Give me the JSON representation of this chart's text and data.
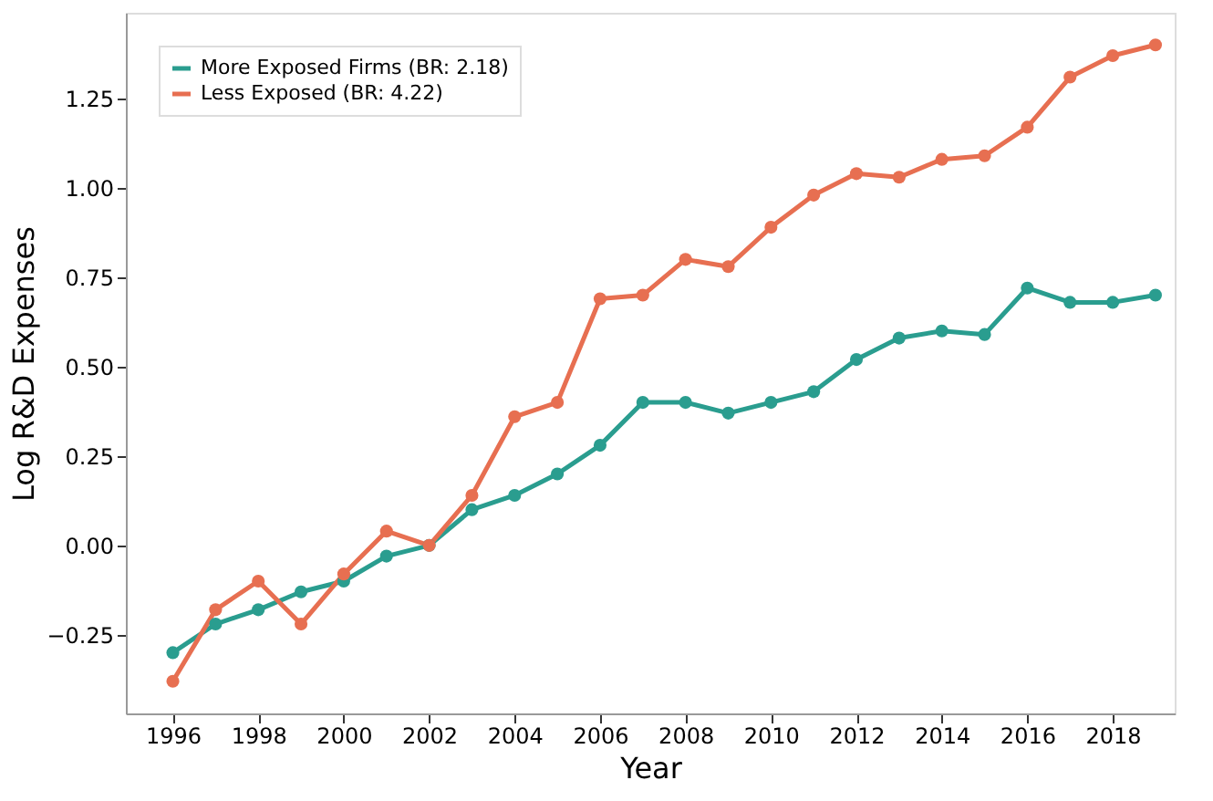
{
  "chart_data": {
    "type": "line",
    "xlabel": "Year",
    "ylabel": "Log R&D Expenses",
    "x": [
      1996,
      1997,
      1998,
      1999,
      2000,
      2001,
      2002,
      2003,
      2004,
      2005,
      2006,
      2007,
      2008,
      2009,
      2010,
      2011,
      2012,
      2013,
      2014,
      2015,
      2016,
      2017,
      2018,
      2019
    ],
    "series": [
      {
        "name": "More Exposed Firms (BR: 2.18)",
        "color": "#2a9d8f",
        "values": [
          -0.3,
          -0.22,
          -0.18,
          -0.13,
          -0.1,
          -0.03,
          0.0,
          0.1,
          0.14,
          0.2,
          0.28,
          0.4,
          0.4,
          0.37,
          0.4,
          0.43,
          0.52,
          0.58,
          0.6,
          0.59,
          0.72,
          0.68,
          0.68,
          0.7
        ]
      },
      {
        "name": "Less Exposed (BR: 4.22)",
        "color": "#e76f51",
        "values": [
          -0.38,
          -0.18,
          -0.1,
          -0.22,
          -0.08,
          0.04,
          0.0,
          0.14,
          0.36,
          0.4,
          0.69,
          0.7,
          0.8,
          0.78,
          0.89,
          0.98,
          1.04,
          1.03,
          1.08,
          1.09,
          1.17,
          1.31,
          1.37,
          1.4
        ]
      }
    ],
    "xlim": [
      1994.9,
      2019.45
    ],
    "xticks": [
      1996,
      1998,
      2000,
      2002,
      2004,
      2006,
      2008,
      2010,
      2012,
      2014,
      2016,
      2018
    ],
    "ylim": [
      -0.47,
      1.49
    ],
    "yticks": [
      {
        "value": -0.25,
        "label": "−0.25"
      },
      {
        "value": 0,
        "label": "0.00"
      },
      {
        "value": 0.25,
        "label": "0.25"
      },
      {
        "value": 0.5,
        "label": "0.50"
      },
      {
        "value": 0.75,
        "label": "0.75"
      },
      {
        "value": 1.0,
        "label": "1.00"
      },
      {
        "value": 1.25,
        "label": "1.25"
      }
    ],
    "grid": false,
    "legend": "top left",
    "marker": "circle",
    "line_style": "solid"
  }
}
